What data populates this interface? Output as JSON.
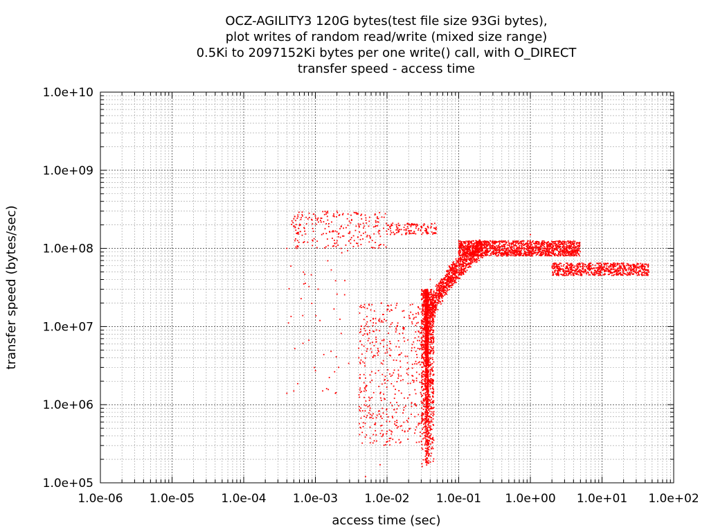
{
  "chart_data": {
    "type": "scatter",
    "title_lines": [
      "OCZ-AGILITY3 120G bytes(test file size 93Gi bytes),",
      "plot writes of random read/write (mixed size range)",
      "0.5Ki to 2097152Ki bytes per one write() call, with O_DIRECT",
      "transfer speed - access time"
    ],
    "xlabel": "access time (sec)",
    "ylabel": "transfer speed (bytes/sec)",
    "xscale": "log",
    "yscale": "log",
    "xlim": [
      1e-06,
      100
    ],
    "ylim": [
      100000,
      10000000000
    ],
    "x_ticks": [
      "1.0e-06",
      "1.0e-05",
      "1.0e-04",
      "1.0e-03",
      "1.0e-02",
      "1.0e-01",
      "1.0e+00",
      "1.0e+01",
      "1.0e+02"
    ],
    "y_ticks": [
      "1.0e+05",
      "1.0e+06",
      "1.0e+07",
      "1.0e+08",
      "1.0e+09",
      "1.0e+10"
    ],
    "grid": true,
    "legend": "none",
    "marker_color": "#ff0000",
    "clusters": [
      {
        "name": "vertical-stem",
        "x_range": [
          0.03,
          0.045
        ],
        "y_range": [
          150000,
          30000000
        ],
        "count": 1600
      },
      {
        "name": "rising-curve",
        "x_range": [
          0.04,
          0.2
        ],
        "y_range": [
          10000000,
          100000000
        ],
        "count": 900
      },
      {
        "name": "plateau-1",
        "x_range": [
          0.1,
          5
        ],
        "y_range": [
          80000000,
          125000000
        ],
        "count": 1400
      },
      {
        "name": "plateau-2",
        "x_range": [
          2,
          45
        ],
        "y_range": [
          45000000,
          65000000
        ],
        "count": 700
      },
      {
        "name": "upper-band",
        "x_range": [
          0.0005,
          0.05
        ],
        "y_range": [
          100000000,
          300000000
        ],
        "count": 350
      },
      {
        "name": "mid-scatter",
        "x_range": [
          0.004,
          0.04
        ],
        "y_range": [
          300000,
          20000000
        ],
        "count": 500
      },
      {
        "name": "sparse-left",
        "x_range": [
          0.0004,
          0.003
        ],
        "y_range": [
          1300000,
          250000000
        ],
        "count": 60
      }
    ],
    "sample_points": [
      {
        "x": 0.0004,
        "y": 100000000
      },
      {
        "x": 0.0004,
        "y": 1400000
      },
      {
        "x": 0.0005,
        "y": 190000000
      },
      {
        "x": 0.001,
        "y": 260000000
      },
      {
        "x": 0.002,
        "y": 300000000
      },
      {
        "x": 0.005,
        "y": 120000
      },
      {
        "x": 0.008,
        "y": 170000
      },
      {
        "x": 0.012,
        "y": 210000000
      },
      {
        "x": 0.025,
        "y": 200000000
      },
      {
        "x": 0.035,
        "y": 200000
      },
      {
        "x": 0.038,
        "y": 5000000
      },
      {
        "x": 0.04,
        "y": 40000000
      },
      {
        "x": 0.1,
        "y": 90000000
      },
      {
        "x": 0.5,
        "y": 110000000
      },
      {
        "x": 1.0,
        "y": 150000000
      },
      {
        "x": 4.0,
        "y": 105000000
      },
      {
        "x": 10,
        "y": 55000000
      },
      {
        "x": 45,
        "y": 50000000
      }
    ]
  }
}
